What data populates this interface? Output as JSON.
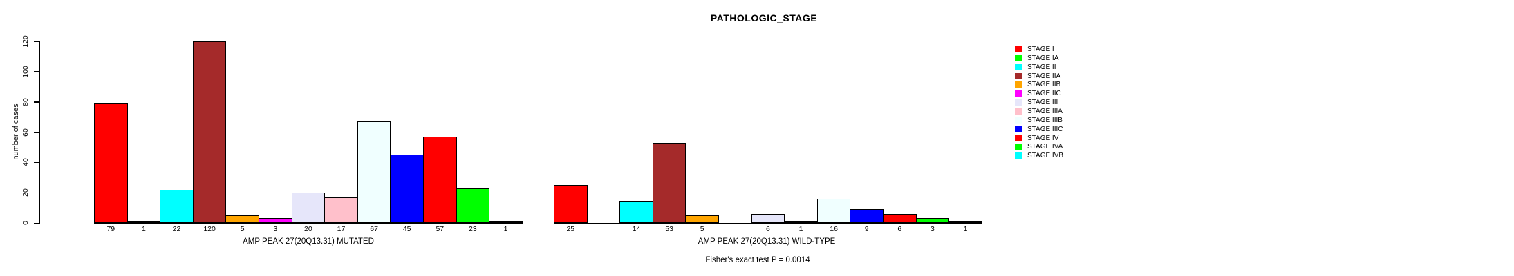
{
  "chart_data": {
    "type": "bar",
    "title": "PATHOLOGIC_STAGE",
    "ylabel": "number of cases",
    "xlabel": "",
    "ylim": [
      0,
      120
    ],
    "yticks": [
      0,
      20,
      40,
      60,
      80,
      100,
      120
    ],
    "grid": false,
    "legend_position": "right",
    "bar_value_labels_shown": true,
    "categories": [
      "STAGE I",
      "STAGE IA",
      "STAGE II",
      "STAGE IIA",
      "STAGE IIB",
      "STAGE IIC",
      "STAGE III",
      "STAGE IIIA",
      "STAGE IIIB",
      "STAGE IIIC",
      "STAGE IV",
      "STAGE IVA",
      "STAGE IVB"
    ],
    "colors": [
      "#FF0000",
      "#00FF00",
      "#00FFFF",
      "#A52A2A",
      "#FFA500",
      "#FF00FF",
      "#E6E6FA",
      "#FFC0CB",
      "#F0FFFF",
      "#0000FF",
      "#FF0000",
      "#00FF00",
      "#00FFFF"
    ],
    "groups": [
      {
        "label": "AMP PEAK 27(20Q13.31) MUTATED",
        "values": [
          79,
          1,
          22,
          120,
          5,
          3,
          20,
          17,
          67,
          45,
          57,
          23,
          1
        ]
      },
      {
        "label": "AMP PEAK 27(20Q13.31) WILD-TYPE",
        "values": [
          25,
          0,
          14,
          53,
          5,
          0,
          6,
          1,
          16,
          9,
          6,
          3,
          1
        ]
      }
    ],
    "annotation": "Fisher's exact test P = 0.0014"
  }
}
